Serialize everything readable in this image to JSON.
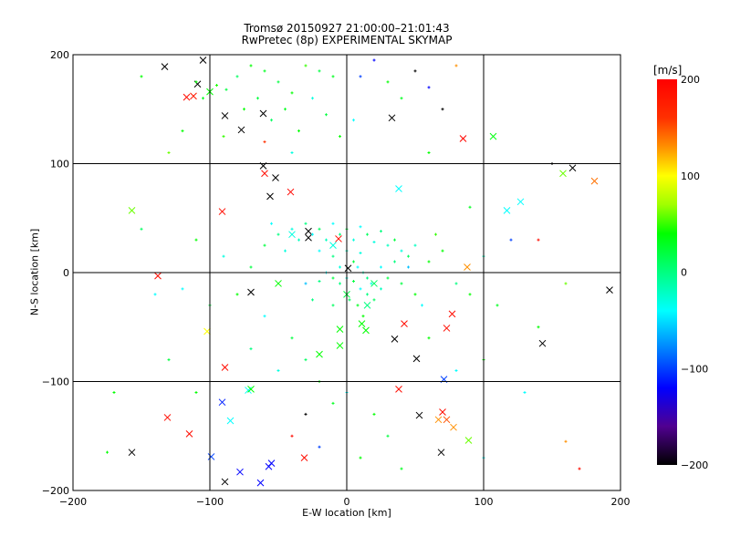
{
  "chart_data": {
    "type": "scatter",
    "title": "Tromsø 20150927 21:00:00–21:01:43",
    "subtitle": "RwPretec (8p) EXPERIMENTAL SKYMAP",
    "xlabel": "E-W location [km]",
    "ylabel": "N-S location [km]",
    "xlim": [
      -200,
      200
    ],
    "ylim": [
      -200,
      200
    ],
    "grid": true,
    "xticks": [
      -200,
      -100,
      0,
      100,
      200
    ],
    "yticks": [
      -200,
      -100,
      0,
      100,
      200
    ],
    "xtick_labels": [
      "−200",
      "−100",
      "0",
      "100",
      "200"
    ],
    "ytick_labels": [
      "−200",
      "−100",
      "0",
      "100",
      "200"
    ],
    "colorbar": {
      "label": "[m/s]",
      "range": [
        -200,
        200
      ],
      "ticks": [
        "200",
        "100",
        "0",
        "−100",
        "−200"
      ],
      "stops": [
        [
          200,
          "#ff0000"
        ],
        [
          160,
          "#ff3000"
        ],
        [
          130,
          "#ff9000"
        ],
        [
          100,
          "#ffff00"
        ],
        [
          70,
          "#a0ff00"
        ],
        [
          40,
          "#00ff00"
        ],
        [
          0,
          "#00ff80"
        ],
        [
          -40,
          "#00ffff"
        ],
        [
          -80,
          "#0080ff"
        ],
        [
          -120,
          "#0000ff"
        ],
        [
          -160,
          "#500090"
        ],
        [
          -200,
          "#000000"
        ]
      ]
    },
    "series": [
      {
        "name": "large",
        "marker": "x",
        "points": [
          [
            -133,
            189,
            -200
          ],
          [
            -105,
            195,
            -200
          ],
          [
            -109,
            173,
            -200
          ],
          [
            -117,
            161,
            190
          ],
          [
            -112,
            162,
            180
          ],
          [
            -100,
            166,
            40
          ],
          [
            -61,
            146,
            -200
          ],
          [
            -77,
            131,
            -200
          ],
          [
            -89,
            144,
            -200
          ],
          [
            33,
            142,
            -200
          ],
          [
            85,
            123,
            195
          ],
          [
            107,
            125,
            35
          ],
          [
            -61,
            98,
            -200
          ],
          [
            -52,
            87,
            -200
          ],
          [
            -60,
            91,
            190
          ],
          [
            -41,
            74,
            195
          ],
          [
            -56,
            70,
            -200
          ],
          [
            -91,
            56,
            190
          ],
          [
            -157,
            57,
            60
          ],
          [
            117,
            57,
            -40
          ],
          [
            127,
            65,
            -40
          ],
          [
            158,
            91,
            60
          ],
          [
            165,
            96,
            -200
          ],
          [
            181,
            84,
            140
          ],
          [
            38,
            77,
            -40
          ],
          [
            -28,
            38,
            -200
          ],
          [
            -28,
            32,
            -200
          ],
          [
            -6,
            31,
            190
          ],
          [
            1,
            4,
            -200
          ],
          [
            -70,
            -18,
            -200
          ],
          [
            -138,
            -3,
            190
          ],
          [
            88,
            5,
            130
          ],
          [
            192,
            -16,
            -200
          ],
          [
            42,
            -47,
            190
          ],
          [
            77,
            -38,
            190
          ],
          [
            73,
            -51,
            190
          ],
          [
            35,
            -61,
            -200
          ],
          [
            51,
            -79,
            -200
          ],
          [
            71,
            -98,
            -100
          ],
          [
            143,
            -65,
            -200
          ],
          [
            -102,
            -54,
            100
          ],
          [
            -89,
            -87,
            190
          ],
          [
            -5,
            -67,
            40
          ],
          [
            11,
            -47,
            40
          ],
          [
            14,
            -53,
            40
          ],
          [
            -72,
            -108,
            -40
          ],
          [
            -91,
            -119,
            -110
          ],
          [
            -131,
            -133,
            190
          ],
          [
            -85,
            -136,
            -40
          ],
          [
            -115,
            -148,
            190
          ],
          [
            -157,
            -165,
            -200
          ],
          [
            -99,
            -169,
            -100
          ],
          [
            -78,
            -183,
            -120
          ],
          [
            -55,
            -175,
            -120
          ],
          [
            -57,
            -178,
            -120
          ],
          [
            -63,
            -193,
            -120
          ],
          [
            -89,
            -192,
            -200
          ],
          [
            -31,
            -170,
            190
          ],
          [
            38,
            -107,
            190
          ],
          [
            53,
            -131,
            -200
          ],
          [
            70,
            -128,
            190
          ],
          [
            67,
            -135,
            130
          ],
          [
            73,
            -135,
            150
          ],
          [
            78,
            -142,
            130
          ],
          [
            69,
            -165,
            -200
          ],
          [
            89,
            -154,
            60
          ],
          [
            -5,
            -52,
            40
          ],
          [
            -20,
            -75,
            40
          ],
          [
            -70,
            -107,
            40
          ],
          [
            -50,
            -10,
            40
          ],
          [
            0,
            -20,
            20
          ],
          [
            20,
            -10,
            10
          ],
          [
            -40,
            35,
            -30
          ],
          [
            -10,
            25,
            -30
          ],
          [
            15,
            -30,
            0
          ]
        ]
      },
      {
        "name": "small",
        "marker": "+",
        "points": [
          [
            -110,
            175,
            40
          ],
          [
            -105,
            160,
            30
          ],
          [
            -95,
            172,
            45
          ],
          [
            -88,
            168,
            20
          ],
          [
            -80,
            180,
            10
          ],
          [
            -70,
            190,
            40
          ],
          [
            -60,
            185,
            30
          ],
          [
            -50,
            175,
            20
          ],
          [
            -40,
            165,
            40
          ],
          [
            -30,
            190,
            50
          ],
          [
            -20,
            185,
            20
          ],
          [
            -10,
            180,
            30
          ],
          [
            -75,
            150,
            40
          ],
          [
            -65,
            160,
            20
          ],
          [
            -55,
            140,
            10
          ],
          [
            -45,
            150,
            30
          ],
          [
            -35,
            130,
            40
          ],
          [
            -25,
            160,
            -30
          ],
          [
            -15,
            145,
            20
          ],
          [
            -5,
            125,
            40
          ],
          [
            10,
            180,
            -100
          ],
          [
            20,
            195,
            -120
          ],
          [
            30,
            175,
            40
          ],
          [
            40,
            160,
            30
          ],
          [
            50,
            185,
            -200
          ],
          [
            60,
            170,
            -120
          ],
          [
            70,
            150,
            -200
          ],
          [
            80,
            190,
            130
          ],
          [
            60,
            110,
            40
          ],
          [
            -150,
            180,
            40
          ],
          [
            -120,
            130,
            40
          ],
          [
            -130,
            110,
            60
          ],
          [
            -90,
            125,
            50
          ],
          [
            -40,
            110,
            -30
          ],
          [
            5,
            140,
            -40
          ],
          [
            -60,
            120,
            160
          ],
          [
            -40,
            40,
            -30
          ],
          [
            -35,
            30,
            -20
          ],
          [
            -30,
            45,
            0
          ],
          [
            -25,
            35,
            -40
          ],
          [
            -20,
            40,
            10
          ],
          [
            -15,
            30,
            -20
          ],
          [
            -10,
            45,
            -40
          ],
          [
            -5,
            35,
            0
          ],
          [
            0,
            40,
            20
          ],
          [
            5,
            30,
            -30
          ],
          [
            10,
            42,
            -40
          ],
          [
            15,
            35,
            10
          ],
          [
            20,
            28,
            -30
          ],
          [
            25,
            38,
            0
          ],
          [
            30,
            25,
            -20
          ],
          [
            35,
            30,
            20
          ],
          [
            40,
            20,
            -30
          ],
          [
            45,
            15,
            10
          ],
          [
            50,
            25,
            -20
          ],
          [
            -45,
            20,
            -30
          ],
          [
            -50,
            35,
            0
          ],
          [
            -55,
            45,
            -40
          ],
          [
            -60,
            25,
            20
          ],
          [
            -20,
            20,
            -40
          ],
          [
            -10,
            15,
            0
          ],
          [
            0,
            20,
            -20
          ],
          [
            10,
            18,
            -30
          ],
          [
            5,
            10,
            20
          ],
          [
            8,
            5,
            -40
          ],
          [
            12,
            0,
            -20
          ],
          [
            15,
            -5,
            0
          ],
          [
            18,
            -10,
            -30
          ],
          [
            5,
            -8,
            20
          ],
          [
            10,
            -15,
            -40
          ],
          [
            15,
            -20,
            0
          ],
          [
            20,
            -25,
            10
          ],
          [
            25,
            -15,
            -20
          ],
          [
            0,
            -5,
            -30
          ],
          [
            -5,
            -10,
            0
          ],
          [
            -10,
            -5,
            20
          ],
          [
            -15,
            0,
            -40
          ],
          [
            -20,
            -8,
            0
          ],
          [
            25,
            5,
            -40
          ],
          [
            30,
            -5,
            20
          ],
          [
            35,
            10,
            0
          ],
          [
            -5,
            5,
            -30
          ],
          [
            2,
            -25,
            10
          ],
          [
            8,
            -30,
            30
          ],
          [
            12,
            -40,
            40
          ],
          [
            -10,
            -30,
            10
          ],
          [
            -25,
            -25,
            0
          ],
          [
            -30,
            -10,
            -60
          ],
          [
            40,
            -10,
            20
          ],
          [
            50,
            -20,
            40
          ],
          [
            55,
            -30,
            -40
          ],
          [
            45,
            5,
            -60
          ],
          [
            60,
            10,
            40
          ],
          [
            70,
            20,
            40
          ],
          [
            65,
            35,
            50
          ],
          [
            80,
            -10,
            0
          ],
          [
            90,
            -20,
            40
          ],
          [
            100,
            15,
            -20
          ],
          [
            110,
            -30,
            30
          ],
          [
            -70,
            5,
            20
          ],
          [
            -80,
            -20,
            40
          ],
          [
            -90,
            15,
            -30
          ],
          [
            -110,
            30,
            40
          ],
          [
            -150,
            40,
            10
          ],
          [
            -120,
            -15,
            -40
          ],
          [
            -100,
            -30,
            20
          ],
          [
            -60,
            -40,
            -40
          ],
          [
            -40,
            -60,
            20
          ],
          [
            -30,
            -80,
            10
          ],
          [
            -70,
            -70,
            0
          ],
          [
            -50,
            -90,
            -30
          ],
          [
            -20,
            -100,
            40
          ],
          [
            -10,
            -120,
            30
          ],
          [
            0,
            -110,
            -40
          ],
          [
            20,
            -130,
            40
          ],
          [
            30,
            -150,
            20
          ],
          [
            -30,
            -130,
            -200
          ],
          [
            -40,
            -150,
            190
          ],
          [
            -20,
            -160,
            -100
          ],
          [
            10,
            -170,
            40
          ],
          [
            40,
            -180,
            30
          ],
          [
            100,
            -80,
            40
          ],
          [
            130,
            -110,
            -40
          ],
          [
            140,
            -50,
            40
          ],
          [
            120,
            30,
            -100
          ],
          [
            160,
            -10,
            60
          ],
          [
            -170,
            -110,
            40
          ],
          [
            -175,
            -165,
            40
          ],
          [
            -140,
            -20,
            -40
          ],
          [
            160,
            -155,
            130
          ],
          [
            170,
            -180,
            190
          ],
          [
            100,
            -170,
            -40
          ],
          [
            60,
            -60,
            40
          ],
          [
            80,
            -90,
            -40
          ],
          [
            -110,
            -110,
            40
          ],
          [
            -130,
            -80,
            20
          ],
          [
            90,
            60,
            30
          ],
          [
            140,
            30,
            190
          ],
          [
            150,
            100,
            -200
          ]
        ]
      }
    ]
  }
}
